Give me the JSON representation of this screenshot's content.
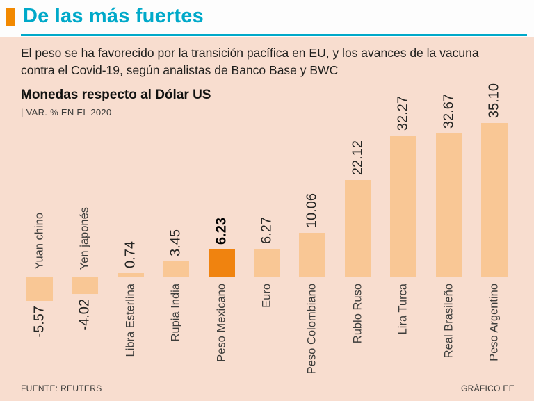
{
  "header": {
    "title": "De las más fuertes"
  },
  "intro": {
    "text": "El peso se ha favorecido por la transición pacífica en EU, y los avances de la vacuna contra el Covid-19, según analistas de Banco Base y BWC"
  },
  "chart_header": {
    "title": "Monedas respecto al Dólar US",
    "subtitle": "| VAR. % EN EL 2020"
  },
  "footer": {
    "source": "FUENTE: REUTERS",
    "credit": "GRÁFICO EE"
  },
  "colors": {
    "background": "#f8ddcf",
    "header_background": "#fdfdfd",
    "accent_square": "#f28900",
    "title_cyan": "#00a9c9",
    "bar": "#f9c795",
    "bar_highlight": "#f0830f"
  },
  "chart_data": {
    "type": "bar",
    "title": "Monedas respecto al Dólar US",
    "subtitle": "| VAR. % EN EL 2020",
    "ylabel": "VAR. % EN EL 2020",
    "xlabel": "",
    "categories": [
      "Yuan chino",
      "Yen japonés",
      "Libra Esterlina",
      "Rupia India",
      "Peso Mexicano",
      "Euro",
      "Peso Colombiano",
      "Rublo Ruso",
      "Lira Turca",
      "Real Brasileño",
      "Peso Argentino"
    ],
    "values": [
      -5.57,
      -4.02,
      0.74,
      3.45,
      6.23,
      6.27,
      10.06,
      22.12,
      32.27,
      32.67,
      35.1
    ],
    "value_labels": [
      "-5.57",
      "-4.02",
      "0.74",
      "3.45",
      "6.23",
      "6.27",
      "10.06",
      "22.12",
      "32.27",
      "32.67",
      "35.10"
    ],
    "highlight_index": 4,
    "highlight_category": "Peso Mexicano",
    "ylim": [
      -6,
      36
    ],
    "grid": false,
    "legend": false,
    "orientation": "vertical",
    "label_rotation": 90
  }
}
